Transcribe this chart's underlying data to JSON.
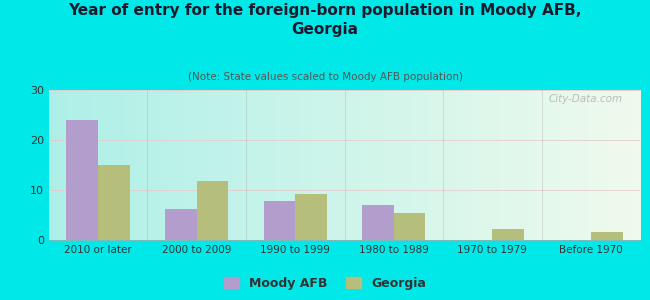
{
  "title": "Year of entry for the foreign-born population in Moody AFB,\nGeorgia",
  "subtitle": "(Note: State values scaled to Moody AFB population)",
  "categories": [
    "2010 or later",
    "2000 to 2009",
    "1990 to 1999",
    "1980 to 1989",
    "1970 to 1979",
    "Before 1970"
  ],
  "moody_afb": [
    24.0,
    6.2,
    7.8,
    7.0,
    0,
    0
  ],
  "georgia": [
    15.0,
    11.8,
    9.2,
    5.5,
    2.2,
    1.7
  ],
  "moody_color": "#b39dcc",
  "georgia_color": "#b5be7a",
  "ylim": [
    0,
    30
  ],
  "yticks": [
    0,
    10,
    20,
    30
  ],
  "background_outer": "#00e8e8",
  "bar_width": 0.32,
  "watermark": "City-Data.com",
  "legend_moody": "Moody AFB",
  "legend_georgia": "Georgia",
  "title_fontsize": 11,
  "subtitle_fontsize": 7.5
}
